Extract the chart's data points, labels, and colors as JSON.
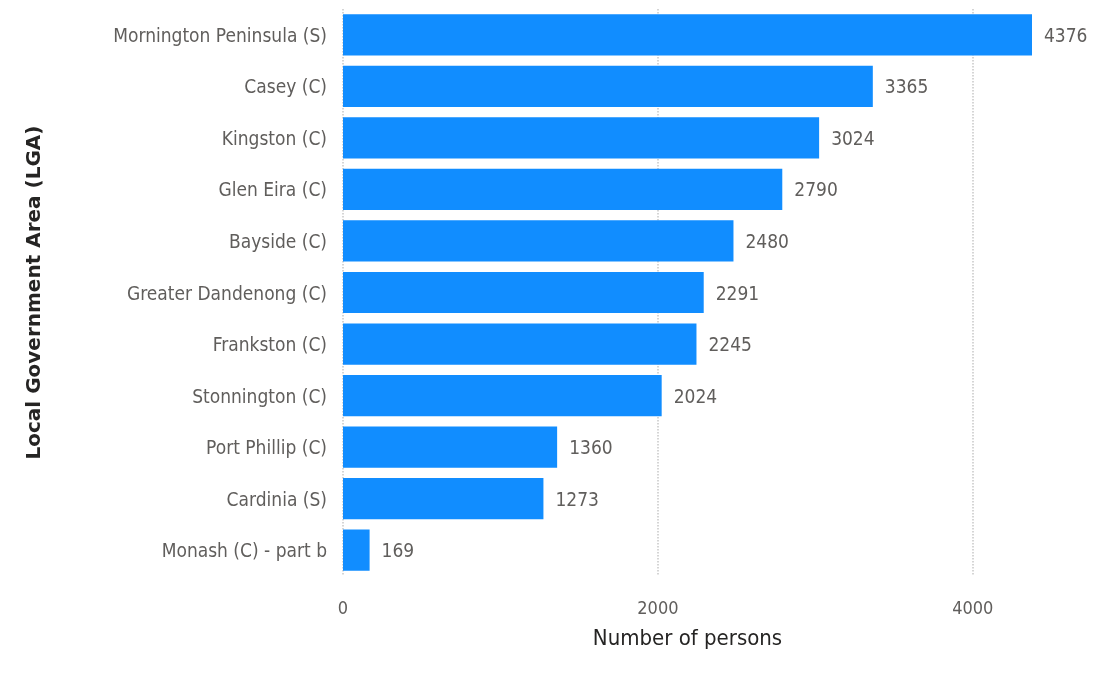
{
  "chart_data": {
    "type": "bar",
    "orientation": "horizontal",
    "xlabel": "Number of persons",
    "ylabel": "Local Government Area (LGA)",
    "categories": [
      "Mornington Peninsula (S)",
      "Casey (C)",
      "Kingston (C)",
      "Glen Eira (C)",
      "Bayside (C)",
      "Greater Dandenong (C)",
      "Frankston (C)",
      "Stonnington (C)",
      "Port Phillip (C)",
      "Cardinia (S)",
      "Monash (C) - part b"
    ],
    "values": [
      4376,
      3365,
      3024,
      2790,
      2480,
      2291,
      2245,
      2024,
      1360,
      1273,
      169
    ],
    "color": "#118dff",
    "xlim": [
      0,
      4376
    ],
    "xticks": [
      0,
      2000,
      4000
    ],
    "grid": "x",
    "data_labels": true
  }
}
